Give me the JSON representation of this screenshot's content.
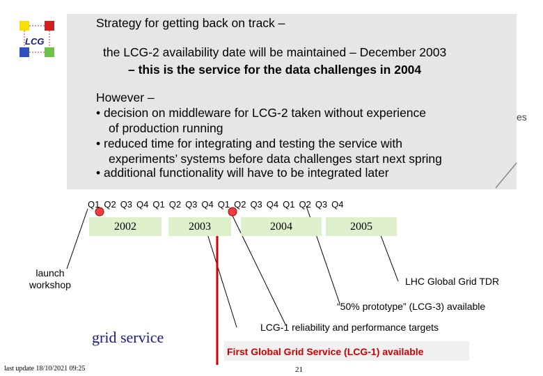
{
  "logo": {
    "text": "LCG"
  },
  "callout": {
    "title": "Strategy for getting back on track  –",
    "line1": "the LCG-2 availability date will be maintained – December 2003",
    "line2": "– this is the service for the data challenges in 2004",
    "however": "However –",
    "b1a": "•  decision on middleware for LCG-2 taken without experience",
    "b1b": "of production running",
    "b2a": "•  reduced time for integrating and testing the service with",
    "b2b": "experiments’ systems before data challenges start next spring",
    "b3": "•  additional functionality will have to be integrated later"
  },
  "right_fragment": "es",
  "timeline": {
    "quarters": [
      "Q1",
      "Q2",
      "Q3",
      "Q4",
      "Q1",
      "Q2",
      "Q3",
      "Q4",
      "Q1",
      "Q2",
      "Q3",
      "Q4",
      "Q1",
      "Q2",
      "Q3",
      "Q4"
    ],
    "years": [
      "2002",
      "2003",
      "2004",
      "2005"
    ]
  },
  "labels": {
    "launch_1": "launch",
    "launch_2": "workshop",
    "lhc_tdr": "LHC Global Grid TDR",
    "prototype": "“50% prototype” (LCG-3) available",
    "reliability": "LCG-1 reliability and performance targets",
    "grid_service": "grid service",
    "first_service": "First Global Grid Service (LCG-1) available"
  },
  "footer": {
    "last_update": "last update 18/10/2021 09:25",
    "page": "21"
  },
  "colors": {
    "callout_bg": "#e6e6e6",
    "year_bg": "#dff0cc",
    "milestone_red": "#cc0000",
    "marker_fill": "#e84040",
    "logo_yellow": "#f5e000",
    "logo_green": "#6cc24a",
    "logo_blue": "#3050c0",
    "logo_red": "#d02020"
  }
}
